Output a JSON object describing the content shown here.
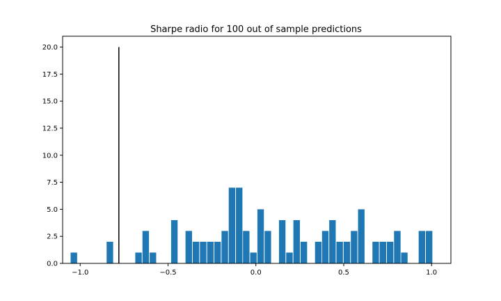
{
  "chart_data": {
    "type": "bar",
    "title": "Sharpe radio for 100 out of sample predictions",
    "xlabel": "",
    "ylabel": "",
    "xlim": [
      -1.1,
      1.11
    ],
    "ylim": [
      0,
      21
    ],
    "xticks": [
      -1.0,
      -0.5,
      0.0,
      0.5,
      1.0
    ],
    "xtick_labels": [
      "−1.0",
      "−0.5",
      "0.0",
      "0.5",
      "1.0"
    ],
    "yticks": [
      0,
      2.5,
      5,
      7.5,
      10,
      12.5,
      15,
      17.5,
      20
    ],
    "ytick_labels": [
      "0.0",
      "2.5",
      "5.0",
      "7.5",
      "10.0",
      "12.5",
      "15.0",
      "17.5",
      "20.0"
    ],
    "bar_width": 0.037,
    "bar_color": "#1f77b4",
    "grid": false,
    "x": [
      -1.036,
      -0.831,
      -0.668,
      -0.627,
      -0.586,
      -0.464,
      -0.382,
      -0.341,
      -0.3,
      -0.259,
      -0.218,
      -0.177,
      -0.136,
      -0.095,
      -0.055,
      -0.014,
      0.027,
      0.068,
      0.15,
      0.191,
      0.232,
      0.273,
      0.355,
      0.395,
      0.436,
      0.477,
      0.518,
      0.559,
      0.6,
      0.682,
      0.723,
      0.764,
      0.805,
      0.845,
      0.945,
      0.986
    ],
    "values": [
      1,
      2,
      1,
      3,
      1,
      4,
      3,
      2,
      2,
      2,
      2,
      3,
      7,
      7,
      3,
      1,
      5,
      3,
      4,
      1,
      4,
      2,
      2,
      3,
      4,
      2,
      2,
      3,
      5,
      2,
      2,
      2,
      3,
      1,
      3,
      3
    ],
    "vline": {
      "x": -0.78,
      "ymin": 0,
      "ymax": 20,
      "color": "#000000"
    }
  }
}
